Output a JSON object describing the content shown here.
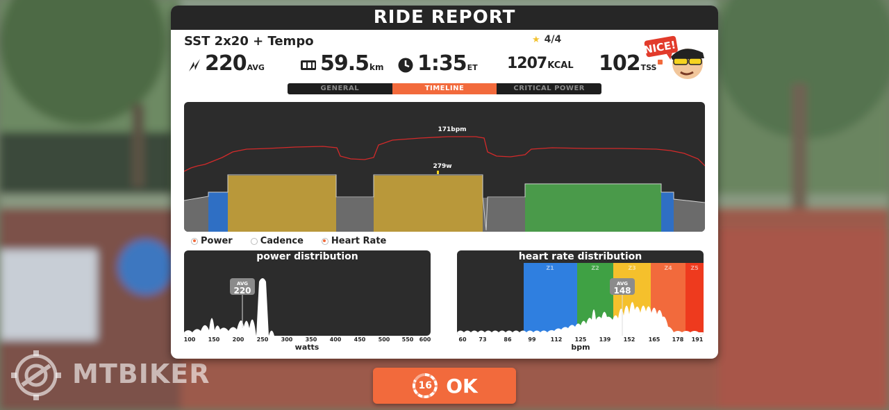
{
  "modal": {
    "title": "RIDE REPORT",
    "workout_name": "SST 2x20 + Tempo",
    "rating": "4/4",
    "badge_text": "NICE!",
    "stats": {
      "avg_power": {
        "value": "220",
        "unit": "AVG",
        "icon": "power-bolt-icon"
      },
      "distance": {
        "value": "59.5",
        "unit": "km",
        "icon": "odometer-icon"
      },
      "time": {
        "value": "1:35",
        "unit": "ET",
        "icon": "clock-icon"
      },
      "energy": {
        "value": "1207",
        "unit": "KCAL"
      },
      "tss": {
        "value": "102",
        "unit": "TSS"
      }
    },
    "tabs": [
      {
        "label": "GENERAL",
        "active": false
      },
      {
        "label": "TIMELINE",
        "active": true
      },
      {
        "label": "CRITICAL POWER",
        "active": false
      }
    ],
    "timeline": {
      "hr_peak_label": "171bpm",
      "power_peak_label": "279w"
    },
    "legend": [
      {
        "label": "Power",
        "selected": true
      },
      {
        "label": "Cadence",
        "selected": false
      },
      {
        "label": "Heart Rate",
        "selected": true
      }
    ],
    "power_distribution": {
      "title": "power distribution",
      "avg_label": "AVG",
      "avg_value": "220",
      "axis_label": "watts",
      "ticks": [
        "100",
        "150",
        "200",
        "250",
        "300",
        "350",
        "400",
        "450",
        "500",
        "550",
        "600"
      ]
    },
    "hr_distribution": {
      "title": "heart rate distribution",
      "avg_label": "AVG",
      "avg_value": "148",
      "axis_label": "bpm",
      "zones": [
        "Z1",
        "Z2",
        "Z3",
        "Z4",
        "Z5"
      ],
      "ticks": [
        "60",
        "73",
        "86",
        "99",
        "112",
        "125",
        "139",
        "152",
        "165",
        "178",
        "191"
      ]
    }
  },
  "ok_button": {
    "label": "OK",
    "countdown": "16"
  },
  "watermark": "MTBIKER",
  "colors": {
    "accent": "#f26a3c",
    "zone_blue": "#2f7fe0",
    "zone_green": "#3fa144",
    "zone_yellow": "#f5c02c",
    "zone_orange": "#f26a3c",
    "zone_red": "#ee3a1e",
    "power_sst": "#b9983a",
    "power_tempo": "#4a9a4a",
    "heart_rate_line": "#d42a2a"
  }
}
